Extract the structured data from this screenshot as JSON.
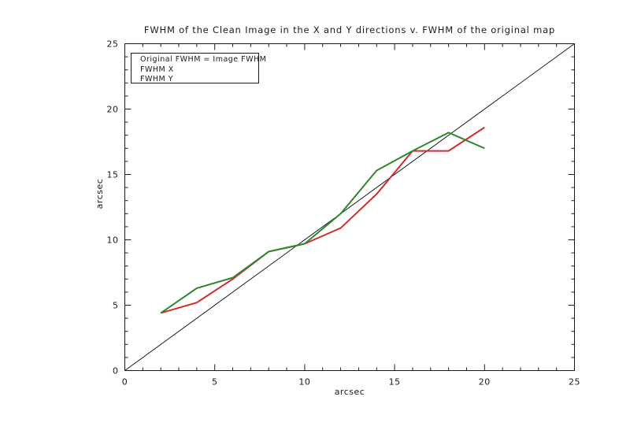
{
  "page": {
    "background": "#ffffff"
  },
  "chart_data": {
    "type": "line",
    "title": "FWHM of the Clean Image in the X and Y directions v. FWHM of the original map",
    "xlabel": "arcsec",
    "ylabel": "arcsec",
    "xlim": [
      0,
      25
    ],
    "ylim": [
      0,
      25
    ],
    "xticks": [
      0,
      5,
      10,
      15,
      20,
      25
    ],
    "yticks": [
      0,
      5,
      10,
      15,
      20,
      25
    ],
    "minor_tick_step": 1,
    "grid": false,
    "axis_color": "#1a1a1a",
    "text_color": "#1a1a1a",
    "series": [
      {
        "name": "Original FWHM = Image FWHM",
        "role": "identity-reference-line",
        "color": "#1a1a1a",
        "width": 1,
        "x": [
          0,
          25
        ],
        "y": [
          0,
          25
        ]
      },
      {
        "name": "FWHM X",
        "role": "data-line",
        "color": "#d22d2d",
        "width": 2,
        "x": [
          2,
          4,
          6,
          8,
          10,
          12,
          14,
          16,
          18,
          20
        ],
        "y": [
          4.4,
          5.2,
          7.0,
          9.1,
          9.7,
          10.9,
          13.5,
          16.8,
          16.8,
          18.6
        ]
      },
      {
        "name": "FWHM Y",
        "role": "data-line",
        "color": "#2d872d",
        "width": 2,
        "x": [
          2,
          4,
          6,
          8,
          10,
          12,
          14,
          16,
          18,
          20
        ],
        "y": [
          4.4,
          6.3,
          7.1,
          9.1,
          9.7,
          12.0,
          15.3,
          16.8,
          18.2,
          17.0
        ]
      }
    ],
    "legend": {
      "position": "top-left",
      "entries": [
        "Original FWHM = Image FWHM",
        "FWHM X",
        "FWHM Y"
      ]
    }
  }
}
